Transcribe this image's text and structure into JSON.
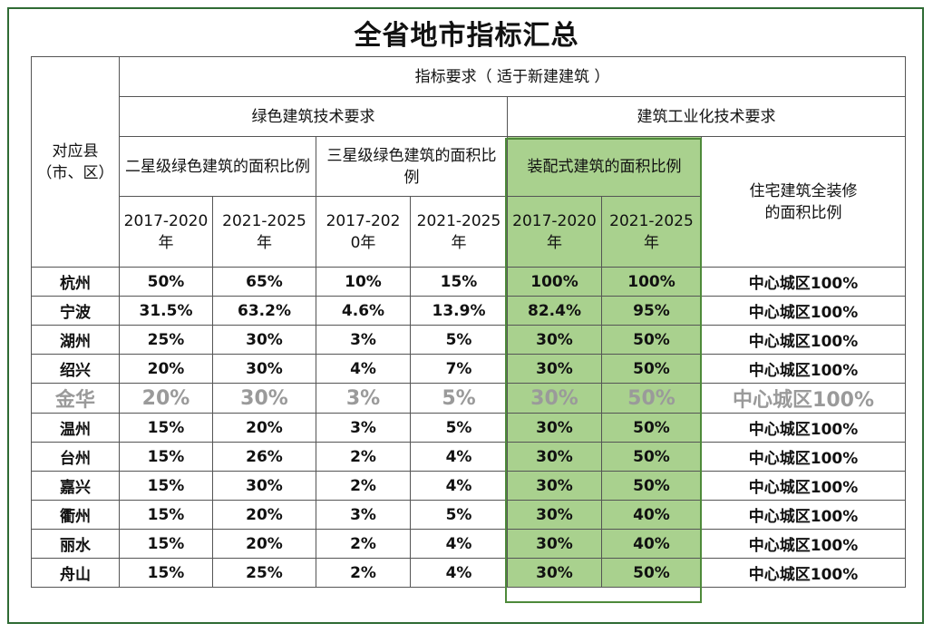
{
  "title": "全省地市指标汇总",
  "headers": {
    "county": "对应县\n（市、区）",
    "top": "指标要求（ 适于新建建筑 ）",
    "green_building": "绿色建筑技术要求",
    "industrial": "建筑工业化技术要求",
    "two_star": "二星级绿色建筑的面积比例",
    "three_star": "三星级绿色建筑的面积比例",
    "prefab": "装配式建筑的面积比例",
    "full_decor": "住宅建筑全装修\n的面积比例",
    "periods": [
      "2017-2020\n年",
      "2021-2025\n年",
      "2017-202\n0年",
      "2021-2025\n年",
      "2017-2020\n年",
      "2021-2025\n年"
    ]
  },
  "rows": [
    {
      "city": "杭州",
      "two_a": "50%",
      "two_b": "65%",
      "three_a": "10%",
      "three_b": "15%",
      "pre_a": "100%",
      "pre_b": "100%",
      "decor": "中心城区100%"
    },
    {
      "city": "宁波",
      "two_a": "31.5%",
      "two_b": "63.2%",
      "three_a": "4.6%",
      "three_b": "13.9%",
      "pre_a": "82.4%",
      "pre_b": "95%",
      "decor": "中心城区100%"
    },
    {
      "city": "湖州",
      "two_a": "25%",
      "two_b": "30%",
      "three_a": "3%",
      "three_b": "5%",
      "pre_a": "30%",
      "pre_b": "50%",
      "decor": "中心城区100%"
    },
    {
      "city": "绍兴",
      "two_a": "20%",
      "two_b": "30%",
      "three_a": "4%",
      "three_b": "7%",
      "pre_a": "30%",
      "pre_b": "50%",
      "decor": "中心城区100%"
    },
    {
      "city": "金华",
      "two_a": "20%",
      "two_b": "30%",
      "three_a": "3%",
      "three_b": "5%",
      "pre_a": "30%",
      "pre_b": "50%",
      "decor": "中心城区100%"
    },
    {
      "city": "温州",
      "two_a": "15%",
      "two_b": "20%",
      "three_a": "3%",
      "three_b": "5%",
      "pre_a": "30%",
      "pre_b": "50%",
      "decor": "中心城区100%"
    },
    {
      "city": "台州",
      "two_a": "15%",
      "two_b": "26%",
      "three_a": "2%",
      "three_b": "4%",
      "pre_a": "30%",
      "pre_b": "50%",
      "decor": "中心城区100%"
    },
    {
      "city": "嘉兴",
      "two_a": "15%",
      "two_b": "30%",
      "three_a": "2%",
      "three_b": "4%",
      "pre_a": "30%",
      "pre_b": "50%",
      "decor": "中心城区100%"
    },
    {
      "city": "衢州",
      "two_a": "15%",
      "two_b": "20%",
      "three_a": "3%",
      "three_b": "5%",
      "pre_a": "30%",
      "pre_b": "40%",
      "decor": "中心城区100%"
    },
    {
      "city": "丽水",
      "two_a": "15%",
      "two_b": "20%",
      "three_a": "2%",
      "three_b": "4%",
      "pre_a": "30%",
      "pre_b": "40%",
      "decor": "中心城区100%"
    },
    {
      "city": "舟山",
      "two_a": "15%",
      "two_b": "25%",
      "three_a": "2%",
      "three_b": "4%",
      "pre_a": "30%",
      "pre_b": "50%",
      "decor": "中心城区100%"
    }
  ],
  "colors": {
    "highlight": "#a9d18e",
    "frame": "#2f6b34",
    "faded_text": "#9a9a9a"
  }
}
